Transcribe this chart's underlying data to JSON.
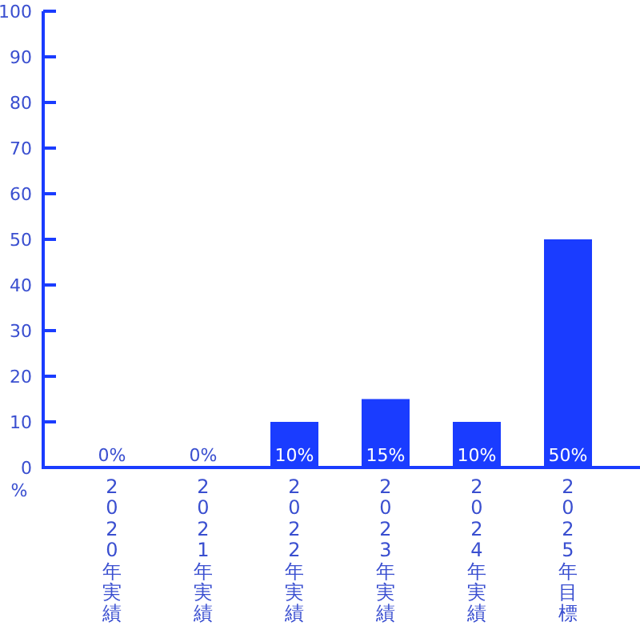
{
  "chart_data": {
    "type": "bar",
    "ylabel": "%",
    "categories": [
      "2020年実績",
      "2021年実績",
      "2022年実績",
      "2023年実績",
      "2024年実績",
      "2025年目標"
    ],
    "values": [
      0,
      0,
      10,
      15,
      10,
      50
    ],
    "value_labels": [
      "0%",
      "0%",
      "10%",
      "15%",
      "10%",
      "50%"
    ],
    "color": "#1a3cff",
    "ylim": [
      0,
      100
    ],
    "yticks": [
      0,
      10,
      20,
      30,
      40,
      50,
      60,
      70,
      80,
      90,
      100
    ],
    "grid": false
  }
}
